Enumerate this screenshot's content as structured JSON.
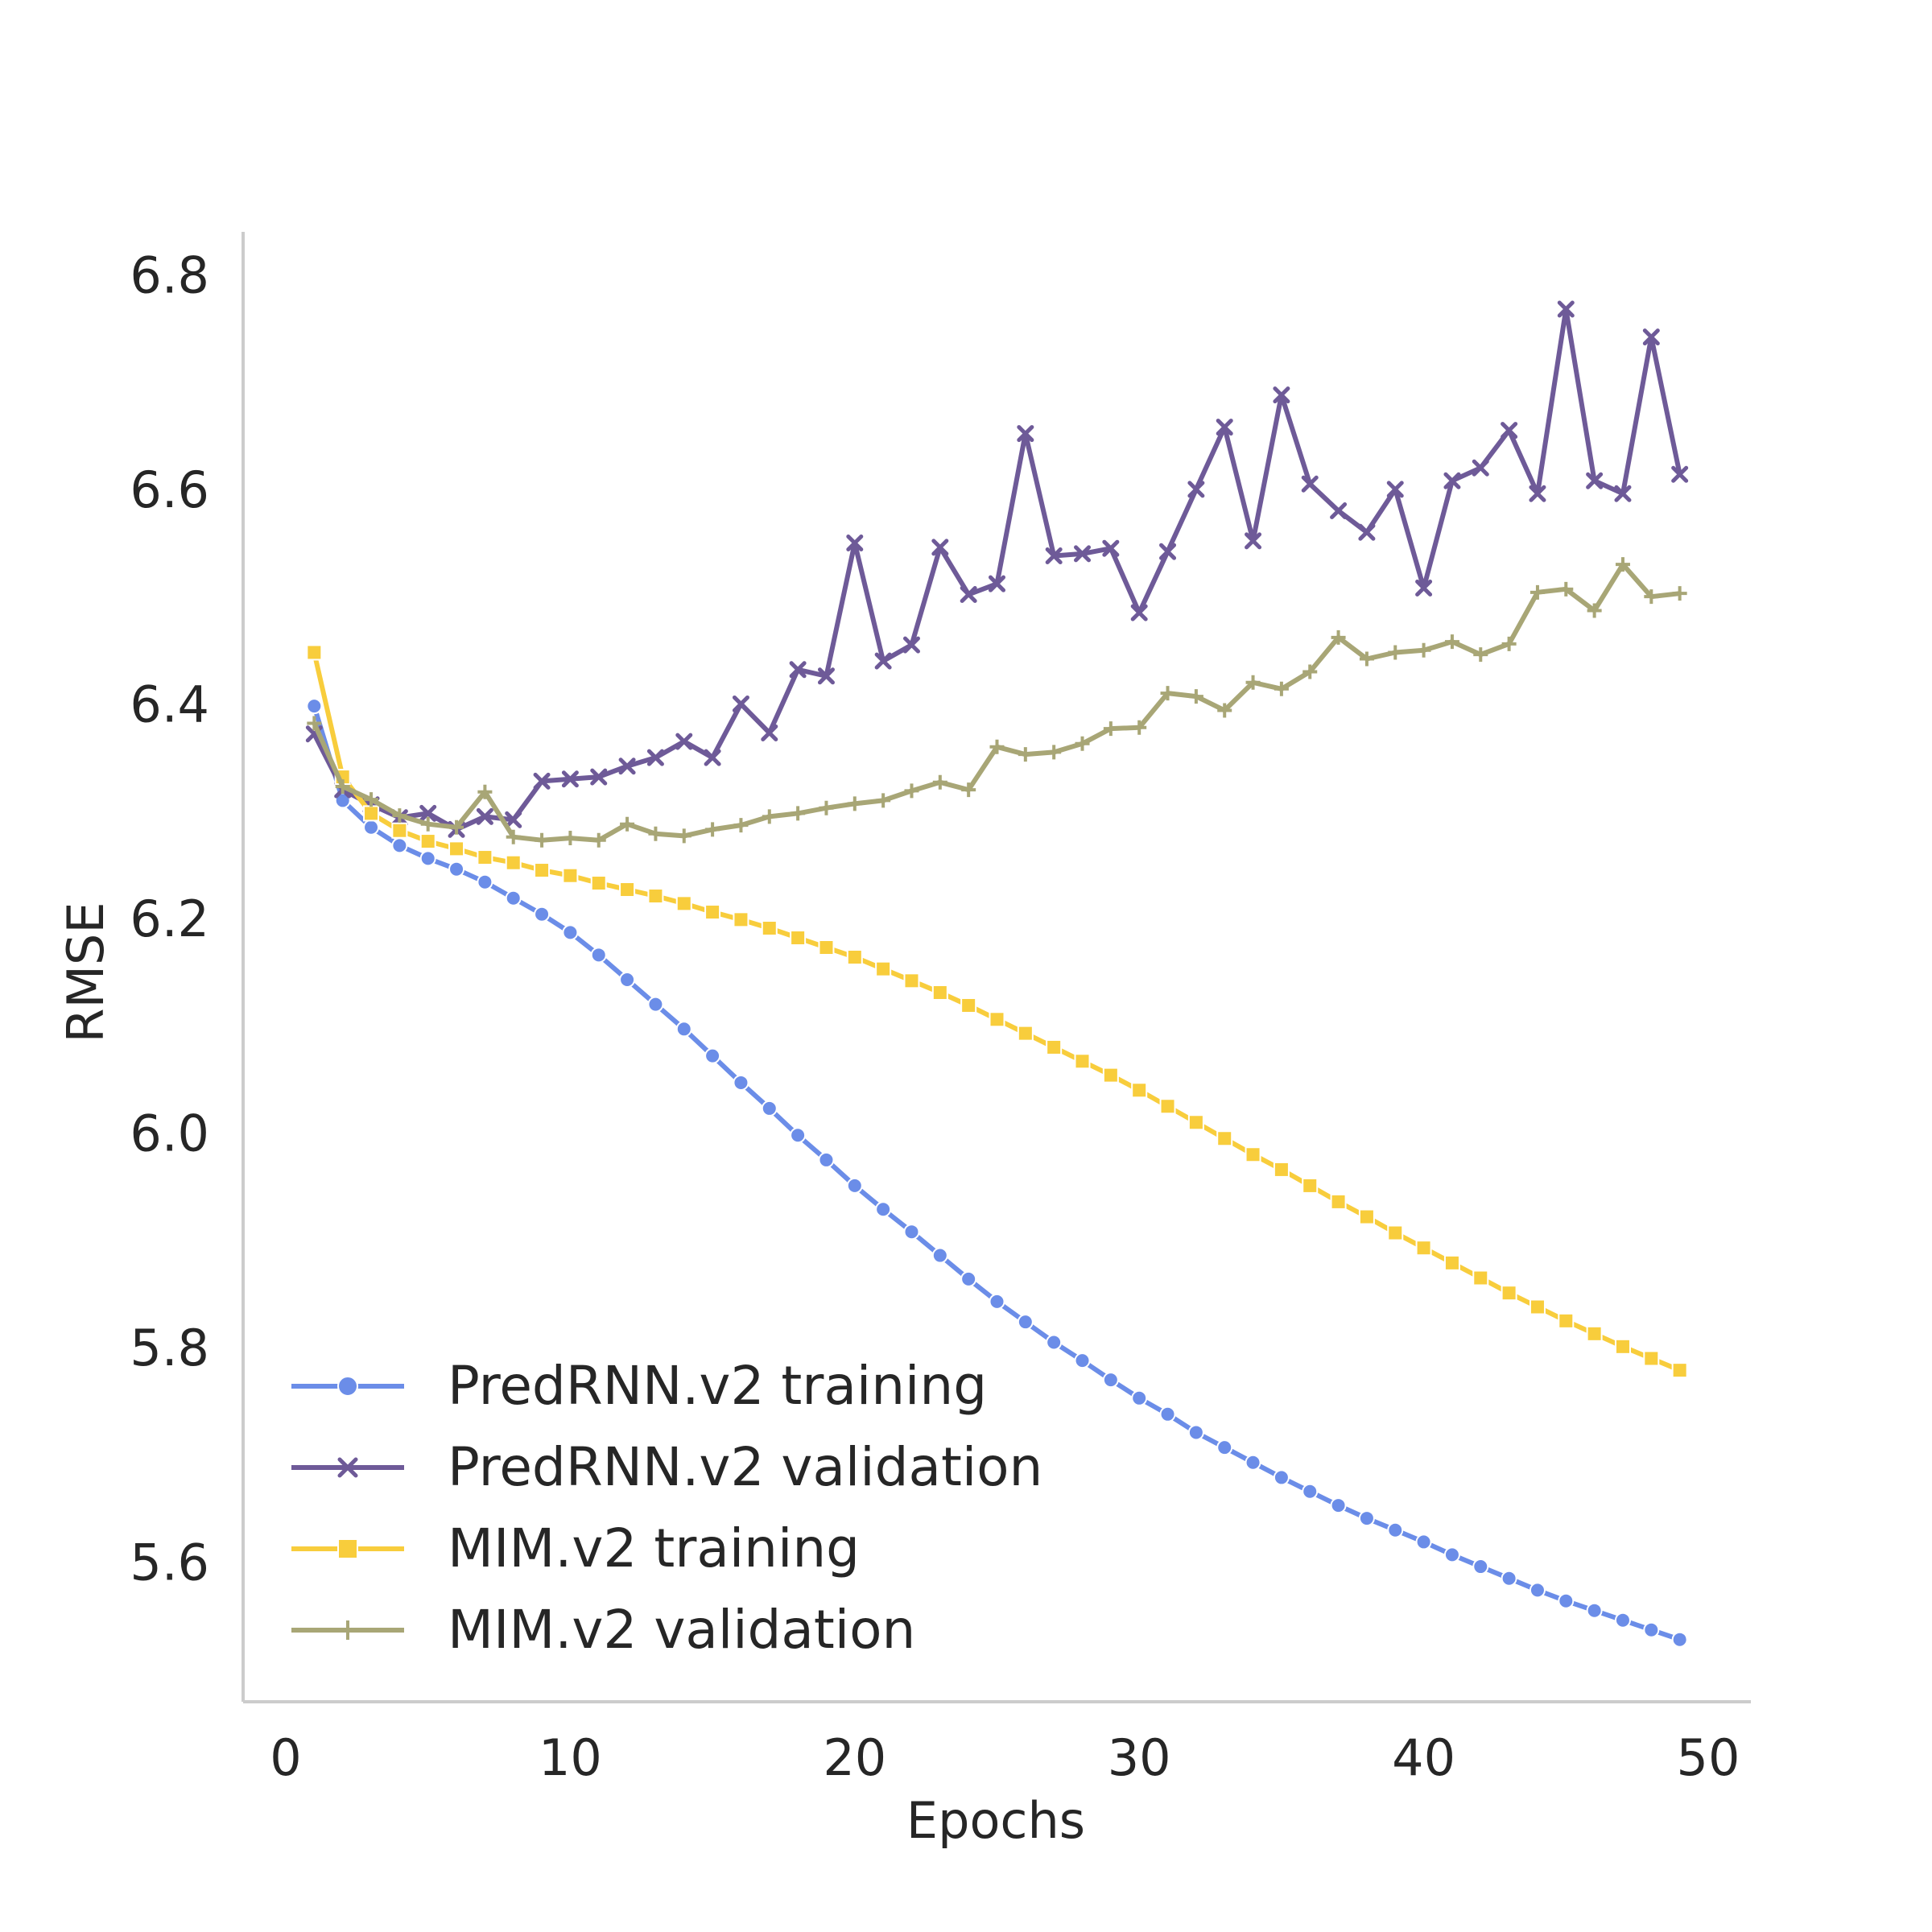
{
  "chart_data": {
    "type": "line",
    "title": "",
    "xlabel": "Epochs",
    "ylabel": "RMSE",
    "xlim": [
      -1.5,
      51.5
    ],
    "ylim": [
      5.47,
      6.84
    ],
    "xticks": [
      0,
      10,
      20,
      30,
      40,
      50
    ],
    "xtick_labels": [
      "0",
      "10",
      "20",
      "30",
      "40",
      "50"
    ],
    "yticks": [
      5.6,
      5.8,
      6.0,
      6.2,
      6.4,
      6.6,
      6.8
    ],
    "ytick_labels": [
      "5.6",
      "5.8",
      "6.0",
      "6.2",
      "6.4",
      "6.6",
      "6.8"
    ],
    "grid": false,
    "legend_position": "lower-left",
    "x": [
      1,
      2,
      3,
      4,
      5,
      6,
      7,
      8,
      9,
      10,
      11,
      12,
      13,
      14,
      15,
      16,
      17,
      18,
      19,
      20,
      21,
      22,
      23,
      24,
      25,
      26,
      27,
      28,
      29,
      30,
      31,
      32,
      33,
      34,
      35,
      36,
      37,
      38,
      39,
      40,
      41,
      42,
      43,
      44,
      45,
      46,
      47,
      48,
      49
    ],
    "series": [
      {
        "name": "PredRNN.v2 training",
        "color": "#6b8de8",
        "marker": "circle",
        "values": [
          6.398,
          6.31,
          6.285,
          6.268,
          6.256,
          6.246,
          6.234,
          6.219,
          6.204,
          6.187,
          6.166,
          6.143,
          6.12,
          6.097,
          6.072,
          6.047,
          6.023,
          5.998,
          5.975,
          5.951,
          5.929,
          5.908,
          5.886,
          5.864,
          5.843,
          5.824,
          5.805,
          5.788,
          5.77,
          5.753,
          5.738,
          5.721,
          5.707,
          5.693,
          5.679,
          5.666,
          5.653,
          5.641,
          5.63,
          5.619,
          5.607,
          5.596,
          5.585,
          5.574,
          5.564,
          5.555,
          5.546,
          5.537,
          5.528
        ]
      },
      {
        "name": "PredRNN.v2 validation",
        "color": "#6e5a98",
        "marker": "x",
        "values": [
          6.372,
          6.32,
          6.306,
          6.294,
          6.298,
          6.283,
          6.295,
          6.292,
          6.328,
          6.33,
          6.332,
          6.342,
          6.35,
          6.365,
          6.35,
          6.4,
          6.373,
          6.432,
          6.426,
          6.55,
          6.44,
          6.455,
          6.546,
          6.502,
          6.512,
          6.652,
          6.538,
          6.54,
          6.545,
          6.485,
          6.542,
          6.6,
          6.658,
          6.552,
          6.688,
          6.605,
          6.58,
          6.56,
          6.6,
          6.508,
          6.608,
          6.62,
          6.655,
          6.596,
          6.768,
          6.608,
          6.596,
          6.742,
          6.614
        ]
      },
      {
        "name": "MIM.v2 training",
        "color": "#f8cd3c",
        "marker": "square",
        "values": [
          6.448,
          6.332,
          6.298,
          6.282,
          6.272,
          6.265,
          6.257,
          6.252,
          6.245,
          6.24,
          6.233,
          6.227,
          6.221,
          6.214,
          6.206,
          6.199,
          6.191,
          6.182,
          6.173,
          6.164,
          6.153,
          6.142,
          6.131,
          6.119,
          6.106,
          6.093,
          6.08,
          6.067,
          6.054,
          6.04,
          6.025,
          6.01,
          5.995,
          5.98,
          5.966,
          5.951,
          5.936,
          5.922,
          5.907,
          5.893,
          5.879,
          5.865,
          5.851,
          5.838,
          5.825,
          5.813,
          5.801,
          5.79,
          5.779
        ]
      },
      {
        "name": "MIM.v2 validation",
        "color": "#a8a676",
        "marker": "plus",
        "values": [
          6.382,
          6.323,
          6.311,
          6.296,
          6.288,
          6.285,
          6.318,
          6.276,
          6.273,
          6.275,
          6.273,
          6.288,
          6.279,
          6.277,
          6.283,
          6.287,
          6.295,
          6.298,
          6.303,
          6.307,
          6.31,
          6.319,
          6.327,
          6.32,
          6.36,
          6.353,
          6.355,
          6.363,
          6.377,
          6.378,
          6.41,
          6.407,
          6.394,
          6.42,
          6.414,
          6.43,
          6.462,
          6.442,
          6.448,
          6.45,
          6.458,
          6.446,
          6.456,
          6.504,
          6.507,
          6.487,
          6.53,
          6.5,
          6.503
        ]
      }
    ]
  }
}
